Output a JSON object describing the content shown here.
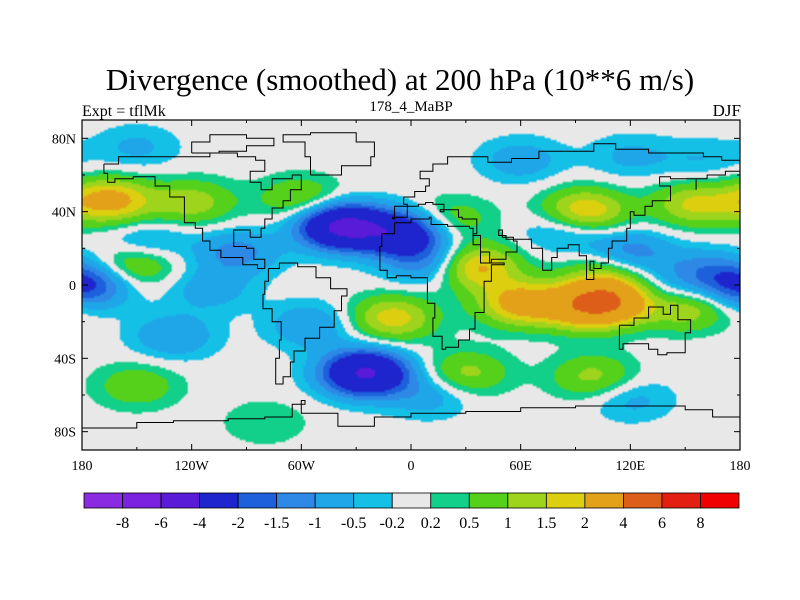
{
  "chart_data": {
    "type": "heatmap",
    "title": "Divergence (smoothed) at 200 hPa (10**6 m/s)",
    "left_label": "Expt = tflMk",
    "center_label": "178_4_MaBP",
    "right_label": "DJF",
    "x_ticks": [
      "180",
      "120W",
      "60W",
      "0",
      "60E",
      "120E",
      "180"
    ],
    "x_tick_values": [
      -180,
      -120,
      -60,
      0,
      60,
      120,
      180
    ],
    "y_ticks": [
      "80N",
      "40N",
      "0",
      "40S",
      "80S"
    ],
    "y_tick_values": [
      80,
      40,
      0,
      -40,
      -80
    ],
    "xlim": [
      -180,
      180
    ],
    "ylim": [
      -90,
      90
    ],
    "contour_levels": [
      "-8",
      "-6",
      "-4",
      "-2",
      "-1.5",
      "-1",
      "-0.5",
      "-0.2",
      "0.2",
      "0.5",
      "1",
      "1.5",
      "2",
      "4",
      "6",
      "8"
    ],
    "colors": [
      "#8a2be2",
      "#7a22e0",
      "#5a1bd8",
      "#1f25cc",
      "#1e5fdc",
      "#2e88e6",
      "#1fa6e8",
      "#15c0e6",
      "#e8e8e8",
      "#12cf8a",
      "#55d11c",
      "#9ed41c",
      "#dccf10",
      "#e3a11a",
      "#dd5e18",
      "#e31f12",
      "#f00000"
    ],
    "features": [
      {
        "lon": -120,
        "lat": 45,
        "value": 1.3
      },
      {
        "lon": -60,
        "lat": 47,
        "value": 1.1
      },
      {
        "lon": -165,
        "lat": 46,
        "value": 2.4
      },
      {
        "lon": 155,
        "lat": 44,
        "value": 1.6
      },
      {
        "lon": 95,
        "lat": 40,
        "value": 2.2
      },
      {
        "lon": 22,
        "lat": 36,
        "value": 0.9
      },
      {
        "lon": -145,
        "lat": 22,
        "value": -1.0
      },
      {
        "lon": -95,
        "lat": 18,
        "value": -1.2
      },
      {
        "lon": -38,
        "lat": 32,
        "value": -4.4
      },
      {
        "lon": -5,
        "lat": 28,
        "value": -3.1
      },
      {
        "lon": 10,
        "lat": 12,
        "value": -1.4
      },
      {
        "lon": 120,
        "lat": 18,
        "value": -1.3
      },
      {
        "lon": 160,
        "lat": 8,
        "value": -1.0
      },
      {
        "lon": 35,
        "lat": 10,
        "value": 2.3
      },
      {
        "lon": 105,
        "lat": 7,
        "value": 0.9
      },
      {
        "lon": 85,
        "lat": 30,
        "value": -1.0
      },
      {
        "lon": -150,
        "lat": 12,
        "value": 1.4
      },
      {
        "lon": -178,
        "lat": 0,
        "value": -2.2
      },
      {
        "lon": -110,
        "lat": -2,
        "value": -0.8
      },
      {
        "lon": 140,
        "lat": -5,
        "value": -0.9
      },
      {
        "lon": 60,
        "lat": -10,
        "value": 2.4
      },
      {
        "lon": 110,
        "lat": -8,
        "value": 3.0
      },
      {
        "lon": 95,
        "lat": -12,
        "value": 2.5
      },
      {
        "lon": 150,
        "lat": -12,
        "value": 1.7
      },
      {
        "lon": -10,
        "lat": -18,
        "value": 1.8
      },
      {
        "lon": -55,
        "lat": -22,
        "value": -1.0
      },
      {
        "lon": -130,
        "lat": -28,
        "value": -1.0
      },
      {
        "lon": -25,
        "lat": -48,
        "value": -4.2
      },
      {
        "lon": 30,
        "lat": -48,
        "value": 1.2
      },
      {
        "lon": 100,
        "lat": -50,
        "value": 1.2
      },
      {
        "lon": -150,
        "lat": -55,
        "value": 0.9
      },
      {
        "lon": 10,
        "lat": -60,
        "value": -0.8
      },
      {
        "lon": 120,
        "lat": -62,
        "value": -0.7
      },
      {
        "lon": -80,
        "lat": -75,
        "value": 0.5
      },
      {
        "lon": -150,
        "lat": 75,
        "value": -0.6
      },
      {
        "lon": 60,
        "lat": 68,
        "value": -0.8
      },
      {
        "lon": 120,
        "lat": 70,
        "value": -0.6
      },
      {
        "lon": 160,
        "lat": 68,
        "value": -0.5
      }
    ]
  }
}
